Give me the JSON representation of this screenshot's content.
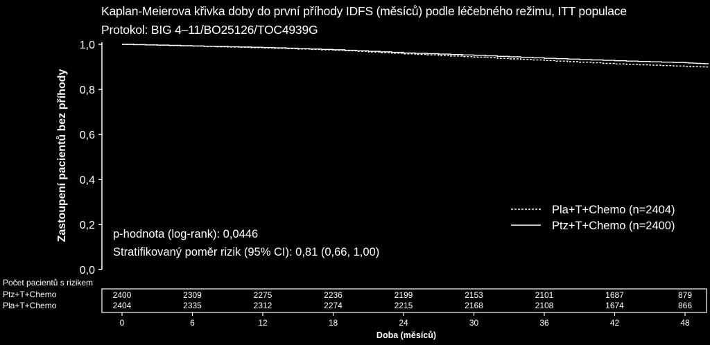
{
  "titles": {
    "line1": "Kaplan-Meierova křivka doby do první příhody IDFS (měsíců) podle léčebného režimu, ITT populace",
    "line2": "Protokol: BIG 4–11/BO25126/TOC4939G"
  },
  "annotations": {
    "pvalue": "p-hodnota (log-rank): 0,0446",
    "hazard_ratio": "Stratifikovaný poměr rizik (95% CI): 0,81 (0,66, 1,00)"
  },
  "risk_table": {
    "header": "Počet pacientů s rizikem",
    "rows": [
      {
        "label": "Ptz+T+Chemo",
        "values": [
          "2400",
          "2309",
          "2275",
          "2236",
          "2199",
          "2153",
          "2101",
          "1687",
          "879"
        ]
      },
      {
        "label": "Pla+T+Chemo",
        "values": [
          "2404",
          "2335",
          "2312",
          "2274",
          "2215",
          "2168",
          "2108",
          "1674",
          "866"
        ]
      }
    ]
  },
  "chart_data": {
    "type": "line",
    "title": "Kaplan-Meierova křivka doby do první příhody IDFS (měsíců) podle léčebného režimu, ITT populace",
    "subtitle": "Protokol: BIG 4–11/BO25126/TOC4939G",
    "xlabel": "Doba (měsíců)",
    "ylabel": "Zastoupení pacientů bez příhody",
    "xlim": [
      0,
      50
    ],
    "ylim": [
      0,
      1
    ],
    "x_ticks": [
      "0",
      "6",
      "12",
      "18",
      "24",
      "30",
      "36",
      "42",
      "48"
    ],
    "y_ticks": [
      "0,0",
      "0,2",
      "0,4",
      "0,6",
      "0,8",
      "1,0"
    ],
    "legend_position": "bottom-right",
    "grid": false,
    "series": [
      {
        "name": "Pla+T+Chemo (n=2404)",
        "style": "dashed",
        "x": [
          0,
          6,
          12,
          18,
          24,
          30,
          36,
          42,
          48,
          50
        ],
        "y": [
          1.0,
          0.992,
          0.984,
          0.974,
          0.958,
          0.943,
          0.928,
          0.913,
          0.902,
          0.899
        ]
      },
      {
        "name": "Ptz+T+Chemo (n=2400)",
        "style": "solid",
        "x": [
          0,
          6,
          12,
          18,
          24,
          30,
          36,
          42,
          48,
          50
        ],
        "y": [
          1.0,
          0.993,
          0.986,
          0.976,
          0.962,
          0.951,
          0.938,
          0.927,
          0.918,
          0.913
        ]
      }
    ]
  }
}
